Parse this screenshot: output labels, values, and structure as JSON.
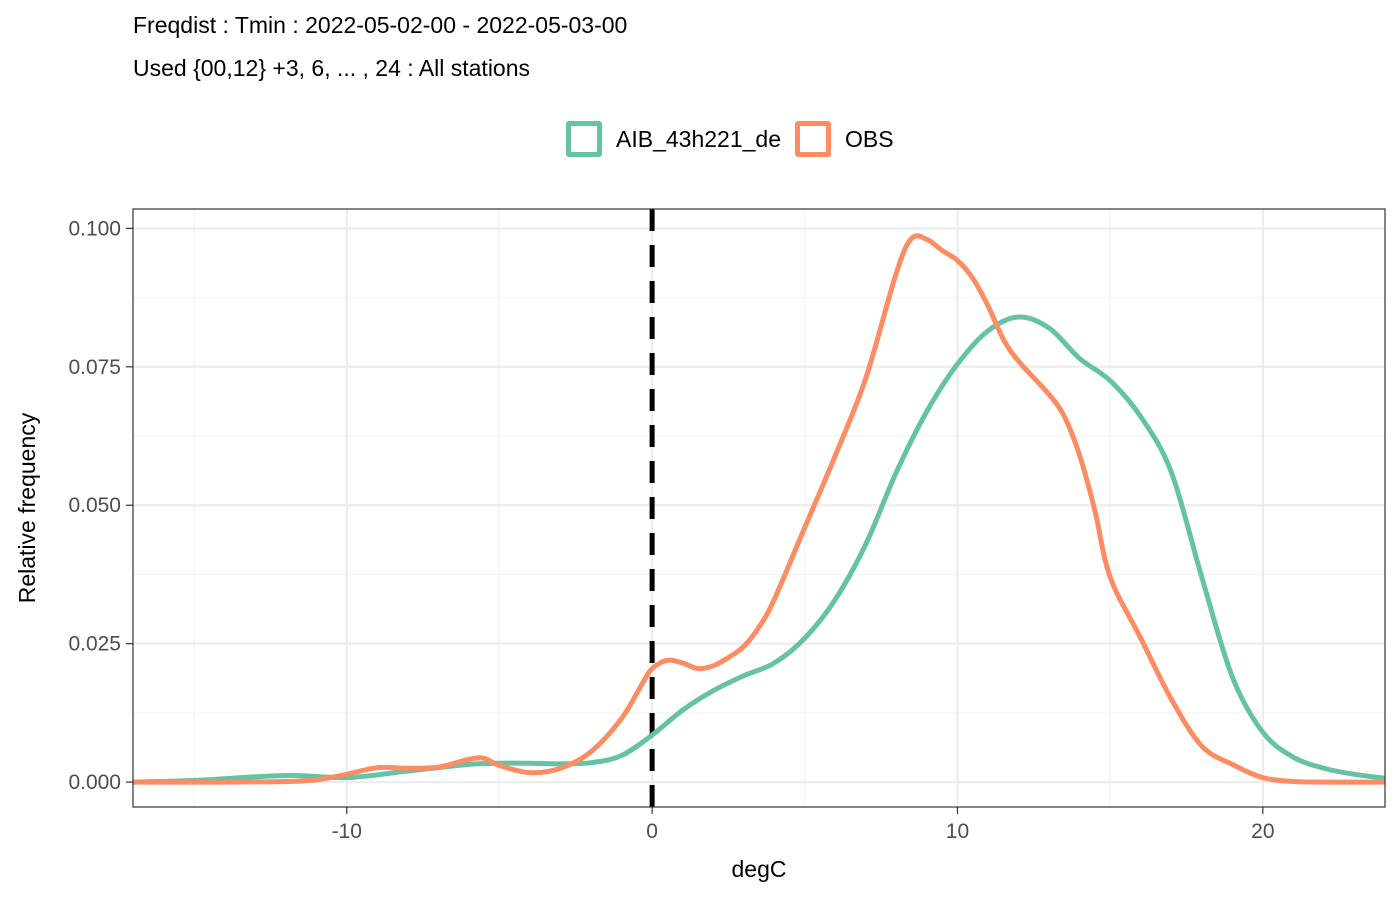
{
  "chart_data": {
    "type": "line",
    "title": "Freqdist : Tmin : 2022-05-02-00 - 2022-05-03-00",
    "subtitle": "Used {00,12} +3, 6, ... , 24 : All stations",
    "xlabel": "degC",
    "ylabel": "Relative frequency",
    "xlim": [
      -17.0,
      24.0
    ],
    "ylim": [
      -0.0045,
      0.1035
    ],
    "x_ticks": [
      -10,
      0,
      10,
      20
    ],
    "x_tick_labels": [
      "-10",
      "0",
      "10",
      "20"
    ],
    "y_ticks": [
      0.0,
      0.025,
      0.05,
      0.075,
      0.1
    ],
    "y_tick_labels": [
      "0.000",
      "0.025",
      "0.050",
      "0.075",
      "0.100"
    ],
    "grid": true,
    "legend_position": "top",
    "reference_line": {
      "x": 0,
      "style": "dashed",
      "color": "#000000"
    },
    "series": [
      {
        "name": "AIB_43h221_de",
        "color": "#66c2a5",
        "points": [
          [
            -17,
            0.0
          ],
          [
            -15,
            0.0003
          ],
          [
            -12,
            0.0012
          ],
          [
            -10,
            0.0008
          ],
          [
            -8,
            0.002
          ],
          [
            -6,
            0.0032
          ],
          [
            -5,
            0.0034
          ],
          [
            -4,
            0.0034
          ],
          [
            -3,
            0.0033
          ],
          [
            -2,
            0.0035
          ],
          [
            -1,
            0.0048
          ],
          [
            0,
            0.0085
          ],
          [
            1,
            0.013
          ],
          [
            2,
            0.0165
          ],
          [
            3,
            0.0192
          ],
          [
            4,
            0.0215
          ],
          [
            5,
            0.026
          ],
          [
            6,
            0.033
          ],
          [
            7,
            0.043
          ],
          [
            8,
            0.056
          ],
          [
            9,
            0.067
          ],
          [
            10,
            0.0755
          ],
          [
            11,
            0.0815
          ],
          [
            12,
            0.084
          ],
          [
            13,
            0.082
          ],
          [
            14,
            0.0765
          ],
          [
            15,
            0.0725
          ],
          [
            16,
            0.066
          ],
          [
            17,
            0.056
          ],
          [
            18,
            0.037
          ],
          [
            19,
            0.019
          ],
          [
            20,
            0.009
          ],
          [
            21,
            0.0045
          ],
          [
            22,
            0.0025
          ],
          [
            23,
            0.0014
          ],
          [
            24,
            0.0007
          ]
        ]
      },
      {
        "name": "OBS",
        "color": "#fc8d62",
        "points": [
          [
            -17,
            0.0
          ],
          [
            -14,
            0.0
          ],
          [
            -12,
            0.0001
          ],
          [
            -11,
            0.0004
          ],
          [
            -10,
            0.0014
          ],
          [
            -9,
            0.0026
          ],
          [
            -8,
            0.0025
          ],
          [
            -7,
            0.0027
          ],
          [
            -6,
            0.0041
          ],
          [
            -5.5,
            0.0043
          ],
          [
            -5,
            0.003
          ],
          [
            -4,
            0.0017
          ],
          [
            -3,
            0.0025
          ],
          [
            -2,
            0.0055
          ],
          [
            -1,
            0.0115
          ],
          [
            -0.3,
            0.018
          ],
          [
            0,
            0.0205
          ],
          [
            0.5,
            0.022
          ],
          [
            1,
            0.0215
          ],
          [
            1.5,
            0.0205
          ],
          [
            2,
            0.021
          ],
          [
            2.5,
            0.0225
          ],
          [
            3,
            0.0245
          ],
          [
            3.5,
            0.028
          ],
          [
            4,
            0.033
          ],
          [
            5,
            0.046
          ],
          [
            6,
            0.059
          ],
          [
            7,
            0.073
          ],
          [
            8,
            0.092
          ],
          [
            8.5,
            0.0982
          ],
          [
            9,
            0.098
          ],
          [
            9.5,
            0.096
          ],
          [
            10,
            0.0942
          ],
          [
            10.5,
            0.091
          ],
          [
            11,
            0.086
          ],
          [
            11.5,
            0.08
          ],
          [
            12,
            0.076
          ],
          [
            13,
            0.07
          ],
          [
            13.5,
            0.066
          ],
          [
            14,
            0.059
          ],
          [
            14.5,
            0.049
          ],
          [
            15,
            0.037
          ],
          [
            16,
            0.026
          ],
          [
            17,
            0.015
          ],
          [
            18,
            0.0065
          ],
          [
            19,
            0.0032
          ],
          [
            20,
            0.0008
          ],
          [
            21,
            0.0001
          ],
          [
            22,
            0.0
          ],
          [
            24,
            0.0
          ]
        ]
      }
    ]
  }
}
